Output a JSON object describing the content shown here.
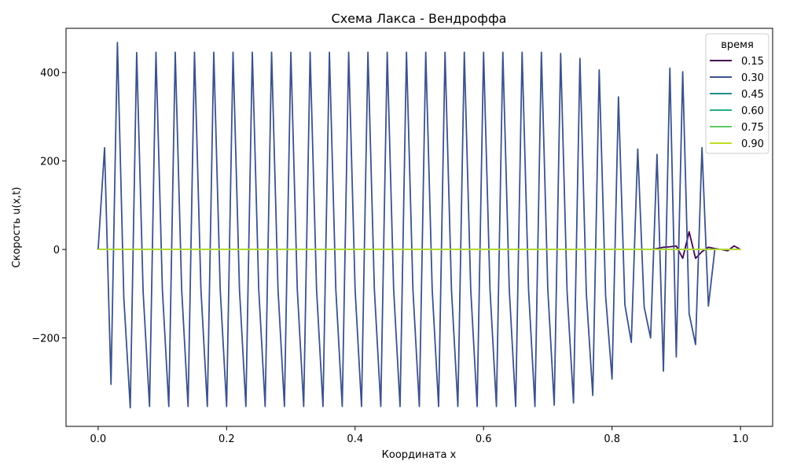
{
  "chart_data": {
    "type": "line",
    "title": "Схема Лакса - Вендроффа",
    "xlabel": "Координата x",
    "ylabel": "Скорость u(x,t)",
    "xlim": [
      -0.05,
      1.05
    ],
    "ylim": [
      -400,
      500
    ],
    "xticks": [
      0.0,
      0.2,
      0.4,
      0.6,
      0.8,
      1.0
    ],
    "xtick_labels": [
      "0.0",
      "0.2",
      "0.4",
      "0.6",
      "0.8",
      "1.0"
    ],
    "yticks": [
      -200,
      0,
      200,
      400
    ],
    "ytick_labels": [
      "−200",
      "0",
      "200",
      "400"
    ],
    "grid": false,
    "legend": {
      "title": "время",
      "placement": "top-right"
    },
    "x": [
      0.0,
      0.01,
      0.02,
      0.03,
      0.04,
      0.05,
      0.06,
      0.07,
      0.08,
      0.09,
      0.1,
      0.11,
      0.12,
      0.13,
      0.14,
      0.15,
      0.16,
      0.17,
      0.18,
      0.19,
      0.2,
      0.21,
      0.22,
      0.23,
      0.24,
      0.25,
      0.26,
      0.27,
      0.28,
      0.29,
      0.3,
      0.31,
      0.32,
      0.33,
      0.34,
      0.35,
      0.36,
      0.37,
      0.38,
      0.39,
      0.4,
      0.41,
      0.42,
      0.43,
      0.44,
      0.45,
      0.46,
      0.47,
      0.48,
      0.49,
      0.5,
      0.51,
      0.52,
      0.53,
      0.54,
      0.55,
      0.56,
      0.57,
      0.58,
      0.59,
      0.6,
      0.61,
      0.62,
      0.63,
      0.64,
      0.65,
      0.66,
      0.67,
      0.68,
      0.69,
      0.7,
      0.71,
      0.72,
      0.73,
      0.74,
      0.75,
      0.76,
      0.77,
      0.78,
      0.79,
      0.8,
      0.81,
      0.82,
      0.83,
      0.84,
      0.85,
      0.86,
      0.87,
      0.88,
      0.89,
      0.9,
      0.91,
      0.92,
      0.93,
      0.94,
      0.95,
      0.96,
      0.97,
      0.98,
      0.99,
      1.0
    ],
    "series": [
      {
        "name": "0.15",
        "color": "#440154",
        "values": [
          0,
          0,
          0,
          0,
          0,
          0,
          0,
          0,
          0,
          0,
          0,
          0,
          0,
          0,
          0,
          0,
          0,
          0,
          0,
          0,
          0,
          0,
          0,
          0,
          0,
          0,
          0,
          0,
          0,
          0,
          0,
          0,
          0,
          0,
          0,
          0,
          0,
          0,
          0,
          0,
          0,
          0,
          0,
          0,
          0,
          0,
          0,
          0,
          0,
          0,
          0,
          0,
          0,
          0,
          0,
          0,
          0,
          0,
          0,
          0,
          0,
          0,
          0,
          0,
          0,
          0,
          0,
          0,
          0,
          0,
          0,
          0,
          0,
          0,
          0,
          0,
          0,
          0,
          0,
          0,
          0,
          0,
          0,
          0,
          0,
          0,
          0,
          2,
          5,
          6,
          8,
          -20,
          40,
          -20,
          -5,
          5,
          2,
          0,
          -3,
          8,
          0
        ]
      },
      {
        "name": "0.30",
        "color": "#3b528b",
        "values": [
          0,
          230,
          -305,
          468,
          -110,
          -358,
          445,
          -95,
          -355,
          446,
          -90,
          -355,
          446,
          -90,
          -355,
          446,
          -90,
          -355,
          446,
          -90,
          -355,
          446,
          -90,
          -355,
          446,
          -90,
          -355,
          446,
          -90,
          -355,
          446,
          -90,
          -355,
          446,
          -90,
          -355,
          446,
          -90,
          -355,
          446,
          -90,
          -355,
          446,
          -90,
          -355,
          446,
          -90,
          -355,
          446,
          -90,
          -355,
          446,
          -90,
          -355,
          446,
          -90,
          -355,
          446,
          -90,
          -355,
          446,
          -90,
          -355,
          446,
          -90,
          -355,
          446,
          -90,
          -355,
          446,
          -90,
          -352,
          443,
          -95,
          -347,
          432,
          -100,
          -330,
          406,
          -105,
          -293,
          345,
          -125,
          -210,
          227,
          -130,
          -200,
          215,
          -275,
          410,
          -243,
          402,
          -145,
          -215,
          230,
          -128,
          0,
          0,
          0,
          0,
          0
        ]
      },
      {
        "name": "0.45",
        "color": "#21908d",
        "values": [
          0,
          0,
          0,
          0,
          0,
          0,
          0,
          0,
          0,
          0,
          0,
          0,
          0,
          0,
          0,
          0,
          0,
          0,
          0,
          0,
          0,
          0,
          0,
          0,
          0,
          0,
          0,
          0,
          0,
          0,
          0,
          0,
          0,
          0,
          0,
          0,
          0,
          0,
          0,
          0,
          0,
          0,
          0,
          0,
          0,
          0,
          0,
          0,
          0,
          0,
          0,
          0,
          0,
          0,
          0,
          0,
          0,
          0,
          0,
          0,
          0,
          0,
          0,
          0,
          0,
          0,
          0,
          0,
          0,
          0,
          0,
          0,
          0,
          0,
          0,
          0,
          0,
          0,
          0,
          0,
          0,
          0,
          0,
          0,
          0,
          0,
          0,
          0,
          0,
          0,
          0,
          0,
          0,
          0,
          0,
          0,
          0,
          0,
          0,
          0,
          0
        ]
      },
      {
        "name": "0.60",
        "color": "#27ad81",
        "values": [
          0,
          0,
          0,
          0,
          0,
          0,
          0,
          0,
          0,
          0,
          0,
          0,
          0,
          0,
          0,
          0,
          0,
          0,
          0,
          0,
          0,
          0,
          0,
          0,
          0,
          0,
          0,
          0,
          0,
          0,
          0,
          0,
          0,
          0,
          0,
          0,
          0,
          0,
          0,
          0,
          0,
          0,
          0,
          0,
          0,
          0,
          0,
          0,
          0,
          0,
          0,
          0,
          0,
          0,
          0,
          0,
          0,
          0,
          0,
          0,
          0,
          0,
          0,
          0,
          0,
          0,
          0,
          0,
          0,
          0,
          0,
          0,
          0,
          0,
          0,
          0,
          0,
          0,
          0,
          0,
          0,
          0,
          0,
          0,
          0,
          0,
          0,
          0,
          0,
          0,
          0,
          0,
          0,
          0,
          0,
          0,
          0,
          0,
          0,
          0,
          0
        ]
      },
      {
        "name": "0.75",
        "color": "#5ec962",
        "values": [
          0,
          0,
          0,
          0,
          0,
          0,
          0,
          0,
          0,
          0,
          0,
          0,
          0,
          0,
          0,
          0,
          0,
          0,
          0,
          0,
          0,
          0,
          0,
          0,
          0,
          0,
          0,
          0,
          0,
          0,
          0,
          0,
          0,
          0,
          0,
          0,
          0,
          0,
          0,
          0,
          0,
          0,
          0,
          0,
          0,
          0,
          0,
          0,
          0,
          0,
          0,
          0,
          0,
          0,
          0,
          0,
          0,
          0,
          0,
          0,
          0,
          0,
          0,
          0,
          0,
          0,
          0,
          0,
          0,
          0,
          0,
          0,
          0,
          0,
          0,
          0,
          0,
          0,
          0,
          0,
          0,
          0,
          0,
          0,
          0,
          0,
          0,
          0,
          0,
          0,
          0,
          0,
          0,
          0,
          0,
          0,
          0,
          0,
          0,
          0,
          0
        ]
      },
      {
        "name": "0.90",
        "color": "#bddf26",
        "values": [
          0,
          0,
          0,
          0,
          0,
          0,
          0,
          0,
          0,
          0,
          0,
          0,
          0,
          0,
          0,
          0,
          0,
          0,
          0,
          0,
          0,
          0,
          0,
          0,
          0,
          0,
          0,
          0,
          0,
          0,
          0,
          0,
          0,
          0,
          0,
          0,
          0,
          0,
          0,
          0,
          0,
          0,
          0,
          0,
          0,
          0,
          0,
          0,
          0,
          0,
          0,
          0,
          0,
          0,
          0,
          0,
          0,
          0,
          0,
          0,
          0,
          0,
          0,
          0,
          0,
          0,
          0,
          0,
          0,
          0,
          0,
          0,
          0,
          0,
          0,
          0,
          0,
          0,
          0,
          0,
          0,
          0,
          0,
          0,
          0,
          0,
          0,
          0,
          0,
          0,
          0,
          0,
          0,
          0,
          0,
          0,
          0,
          0,
          0,
          0,
          0
        ]
      }
    ]
  }
}
